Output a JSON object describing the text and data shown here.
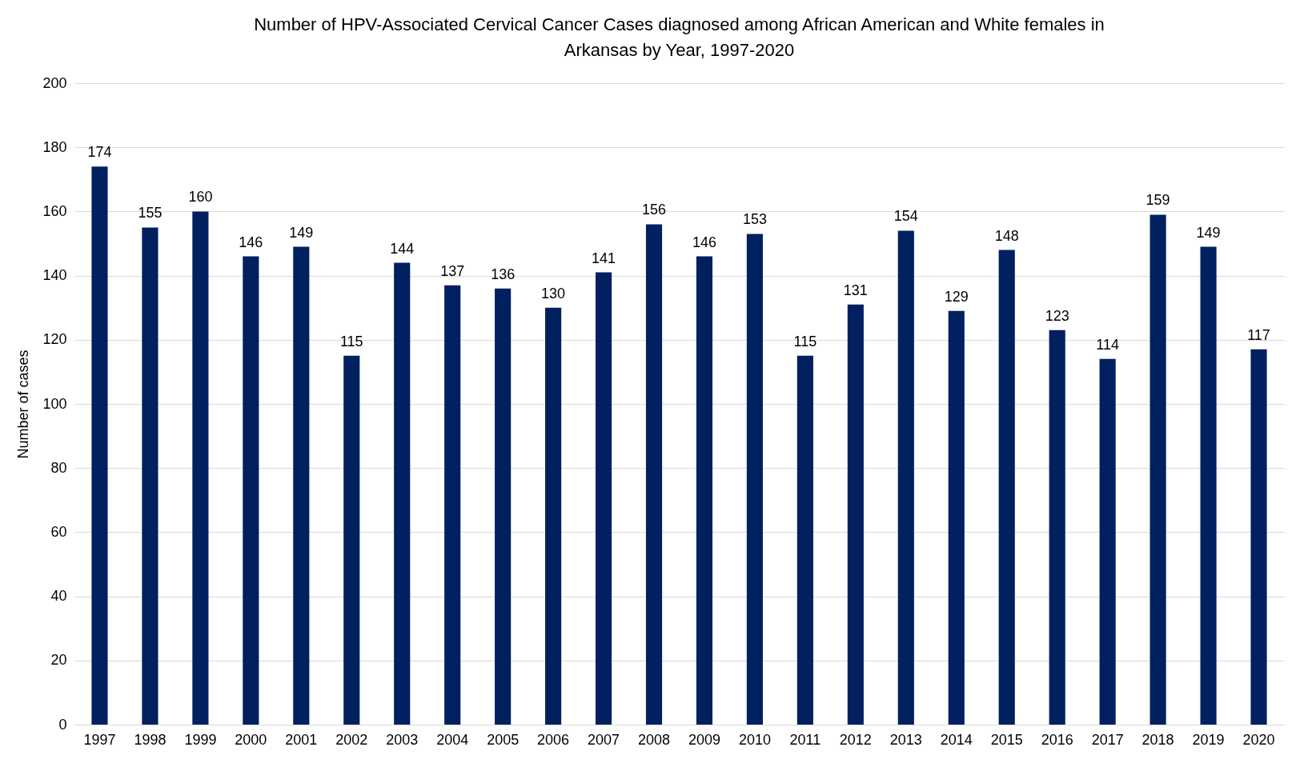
{
  "chart_data": {
    "type": "bar",
    "title": "Number of HPV-Associated Cervical Cancer Cases diagnosed among African American and White females in Arkansas by Year, 1997-2020",
    "ylabel": "Number of cases",
    "categories": [
      "1997",
      "1998",
      "1999",
      "2000",
      "2001",
      "2002",
      "2003",
      "2004",
      "2005",
      "2006",
      "2007",
      "2008",
      "2009",
      "2010",
      "2011",
      "2012",
      "2013",
      "2014",
      "2015",
      "2016",
      "2017",
      "2018",
      "2019",
      "2020"
    ],
    "values": [
      174,
      155,
      160,
      146,
      149,
      115,
      144,
      137,
      136,
      130,
      141,
      156,
      146,
      153,
      115,
      131,
      154,
      129,
      148,
      123,
      114,
      159,
      149,
      117
    ],
    "color": "#002060",
    "ylim": [
      0,
      200
    ],
    "yticks": [
      0,
      20,
      40,
      60,
      80,
      100,
      120,
      140,
      160,
      180,
      200
    ],
    "grid": "y",
    "data_labels": true
  }
}
